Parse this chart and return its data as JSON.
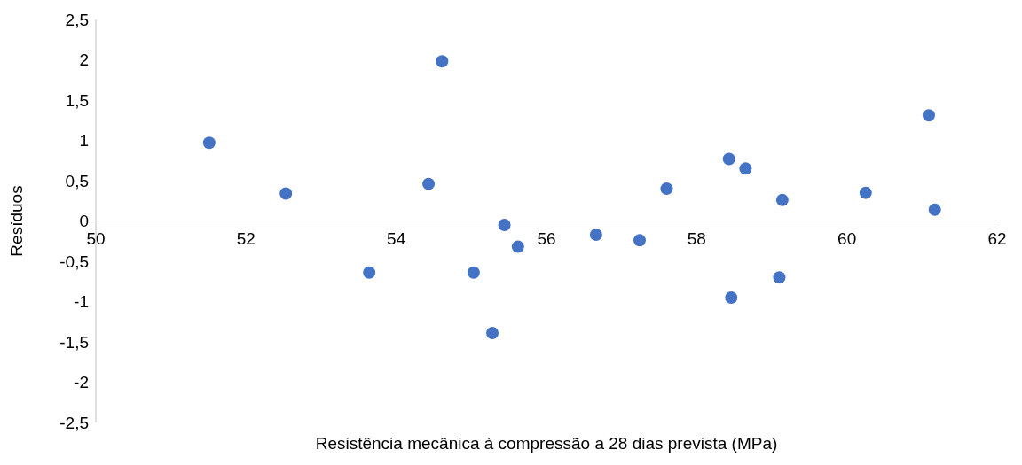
{
  "chart_data": {
    "type": "scatter",
    "xlabel": "Resistência mecânica à compressão a 28 dias prevista (MPa)",
    "ylabel": "Resíduos",
    "x": [
      51.51,
      52.53,
      53.64,
      54.43,
      54.61,
      55.03,
      55.28,
      55.44,
      55.62,
      56.66,
      57.24,
      57.6,
      58.43,
      58.46,
      58.65,
      59.1,
      59.14,
      60.25,
      61.09,
      61.17
    ],
    "series": [
      {
        "color": "#4472c4",
        "values": [
          0.97,
          0.34,
          -0.64,
          0.46,
          1.98,
          -0.64,
          -1.39,
          -0.05,
          -0.32,
          -0.17,
          -0.24,
          0.4,
          0.77,
          -0.95,
          0.65,
          -0.7,
          0.26,
          0.35,
          1.31,
          0.14
        ]
      }
    ],
    "xlim": [
      50,
      62
    ],
    "xticks": [
      50,
      52,
      54,
      56,
      58,
      60,
      62
    ],
    "ylim": [
      -2.5,
      2.5
    ],
    "yticks": [
      {
        "value": -2.5,
        "label": "-2,5"
      },
      {
        "value": -2,
        "label": "-2"
      },
      {
        "value": -1.5,
        "label": "-1,5"
      },
      {
        "value": -1,
        "label": "-1"
      },
      {
        "value": -0.5,
        "label": "-0,5"
      },
      {
        "value": 0,
        "label": "0"
      },
      {
        "value": 0.5,
        "label": "0,5"
      },
      {
        "value": 1,
        "label": "1"
      },
      {
        "value": 1.5,
        "label": "1,5"
      },
      {
        "value": 2,
        "label": "2"
      },
      {
        "value": 2.5,
        "label": "2,5"
      }
    ],
    "marker": "circle",
    "grid": false,
    "legend": false
  }
}
